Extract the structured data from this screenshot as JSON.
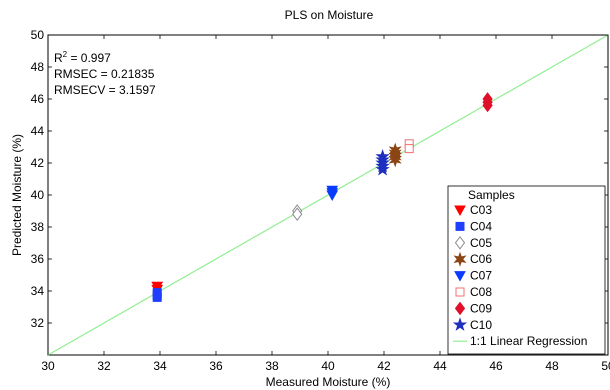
{
  "chart_data": {
    "type": "scatter",
    "title": "PLS on Moisture",
    "xlabel": "Measured Moisture (%)",
    "ylabel": "Predicted Moisture (%)",
    "xlim": [
      30,
      50
    ],
    "ylim": [
      30,
      50
    ],
    "xticks": [
      30,
      32,
      34,
      36,
      38,
      40,
      42,
      44,
      46,
      48,
      50
    ],
    "yticks": [
      32,
      34,
      36,
      38,
      40,
      42,
      44,
      46,
      48,
      50
    ],
    "grid": false,
    "stats": {
      "r2_label": "R",
      "r2_sup": "2",
      "r2_value": " = 0.997",
      "rmsec": "RMSEC = 0.21835",
      "rmsecv": "RMSECV = 3.1597"
    },
    "legend": {
      "title": "Samples",
      "placement": "bottom-right"
    },
    "series": [
      {
        "name": "C03",
        "marker": "triangle-down",
        "color": "#ff0000",
        "filled": true,
        "x": [
          33.9,
          33.9
        ],
        "y": [
          34.3,
          34.1
        ]
      },
      {
        "name": "C04",
        "marker": "square",
        "color": "#1f3fff",
        "filled": true,
        "x": [
          33.9,
          33.9,
          33.9
        ],
        "y": [
          33.9,
          33.75,
          33.6
        ]
      },
      {
        "name": "C05",
        "marker": "diamond",
        "color": "#8c8c8c",
        "filled": false,
        "x": [
          38.9,
          38.9
        ],
        "y": [
          39.0,
          38.8
        ]
      },
      {
        "name": "C06",
        "marker": "hexagram",
        "color": "#8b4513",
        "filled": true,
        "x": [
          42.4,
          42.4,
          42.4,
          42.4
        ],
        "y": [
          42.8,
          42.6,
          42.4,
          42.2
        ]
      },
      {
        "name": "C07",
        "marker": "triangle-down",
        "color": "#0a3cff",
        "filled": true,
        "x": [
          40.15,
          40.15,
          40.15
        ],
        "y": [
          40.3,
          40.15,
          40.0
        ]
      },
      {
        "name": "C08",
        "marker": "square",
        "color": "#f07070",
        "filled": false,
        "x": [
          42.9,
          42.9
        ],
        "y": [
          43.2,
          42.9
        ]
      },
      {
        "name": "C09",
        "marker": "diamond",
        "color": "#e0102a",
        "filled": true,
        "x": [
          45.7,
          45.7,
          45.7
        ],
        "y": [
          46.0,
          45.8,
          45.6
        ]
      },
      {
        "name": "C10",
        "marker": "star",
        "color": "#1f2fbf",
        "filled": true,
        "x": [
          41.95,
          41.95,
          41.95,
          41.95,
          41.95
        ],
        "y": [
          42.4,
          42.2,
          42.0,
          41.8,
          41.6
        ]
      }
    ],
    "regression": {
      "name": "1:1 Linear Regression",
      "color": "#90ee90",
      "x": [
        30,
        50
      ],
      "y": [
        30,
        50
      ]
    }
  }
}
